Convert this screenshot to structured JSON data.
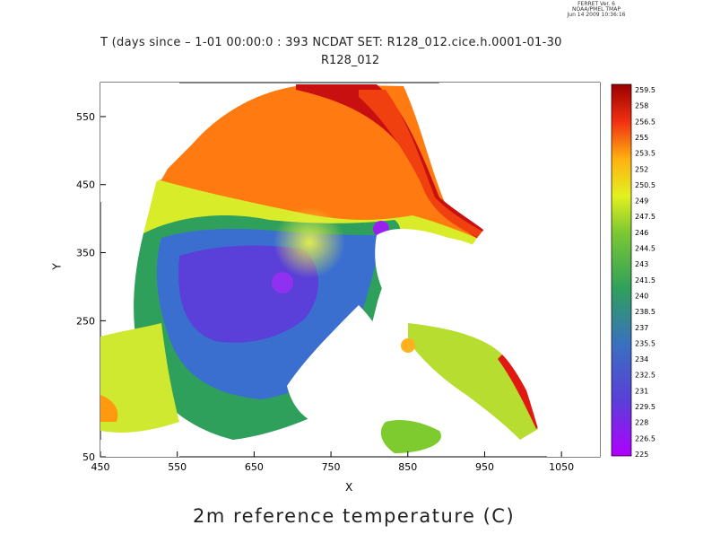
{
  "header": {
    "ferret_lines": [
      "FERRET Ver. 6",
      "NOAA/PMEL TMAP",
      "Jun 14 2009 10:36:16"
    ],
    "line1": "T (days since      – 1-01 00:00:0     : 393  NCDAT SET: R128_012.cice.h.0001-01-30",
    "line2": "R128_012"
  },
  "chart_data": {
    "type": "heatmap",
    "title": "2m reference temperature (C)",
    "xlabel": "X",
    "ylabel": "Y",
    "xlim": [
      450,
      1100
    ],
    "ylim": [
      50,
      600
    ],
    "x_ticks": [
      450,
      550,
      650,
      750,
      850,
      950,
      1050
    ],
    "y_ticks": [
      50,
      250,
      350,
      450,
      550
    ],
    "colorbar_labels": [
      "259.5",
      "258",
      "256.5",
      "255",
      "253.5",
      "252",
      "250.5",
      "249",
      "247.5",
      "246",
      "244.5",
      "243",
      "241.5",
      "240",
      "238.5",
      "237",
      "235.5",
      "234",
      "232.5",
      "231",
      "229.5",
      "228",
      "226.5",
      "225"
    ],
    "colorbar_range": [
      225,
      259.5
    ],
    "colors": {
      "low": "#a010f0",
      "cold": "#5a3fd8",
      "mid": "#2fa05c",
      "yellow_green": "#d9ef2a",
      "warm": "#ff8c10",
      "hot": "#d01010",
      "high": "#9a0000"
    }
  }
}
